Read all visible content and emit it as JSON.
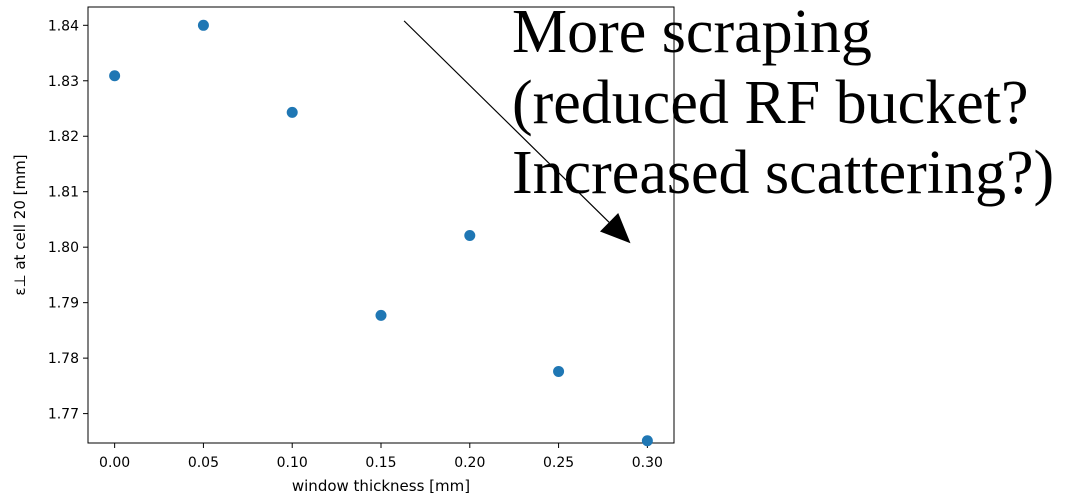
{
  "chart_data": {
    "type": "scatter",
    "title": "",
    "xlabel": "window thickness [mm]",
    "ylabel": "ε⊥ at cell 20 [mm]",
    "xlim": [
      -0.015,
      0.315
    ],
    "ylim": [
      1.7647,
      1.8433
    ],
    "x_ticks": [
      0.0,
      0.05,
      0.1,
      0.15,
      0.2,
      0.25,
      0.3
    ],
    "x_tick_labels": [
      "0.00",
      "0.05",
      "0.10",
      "0.15",
      "0.20",
      "0.25",
      "0.30"
    ],
    "y_ticks": [
      1.77,
      1.78,
      1.79,
      1.8,
      1.81,
      1.82,
      1.83,
      1.84
    ],
    "y_tick_labels": [
      "1.77",
      "1.78",
      "1.79",
      "1.80",
      "1.81",
      "1.82",
      "1.83",
      "1.84"
    ],
    "grid": false,
    "series": [
      {
        "color": "#1f77b4",
        "x": [
          0.0,
          0.05,
          0.1,
          0.15,
          0.2,
          0.25,
          0.3
        ],
        "y": [
          1.8309,
          1.84,
          1.8243,
          1.7877,
          1.8021,
          1.7776,
          1.7651
        ]
      }
    ],
    "annotation": {
      "lines": [
        "More scraping",
        "(reduced RF bucket?",
        "Increased scattering?)"
      ],
      "arrow": {
        "from": [
          0.163,
          1.8408
        ],
        "to": [
          0.2905,
          1.8007
        ]
      }
    }
  }
}
